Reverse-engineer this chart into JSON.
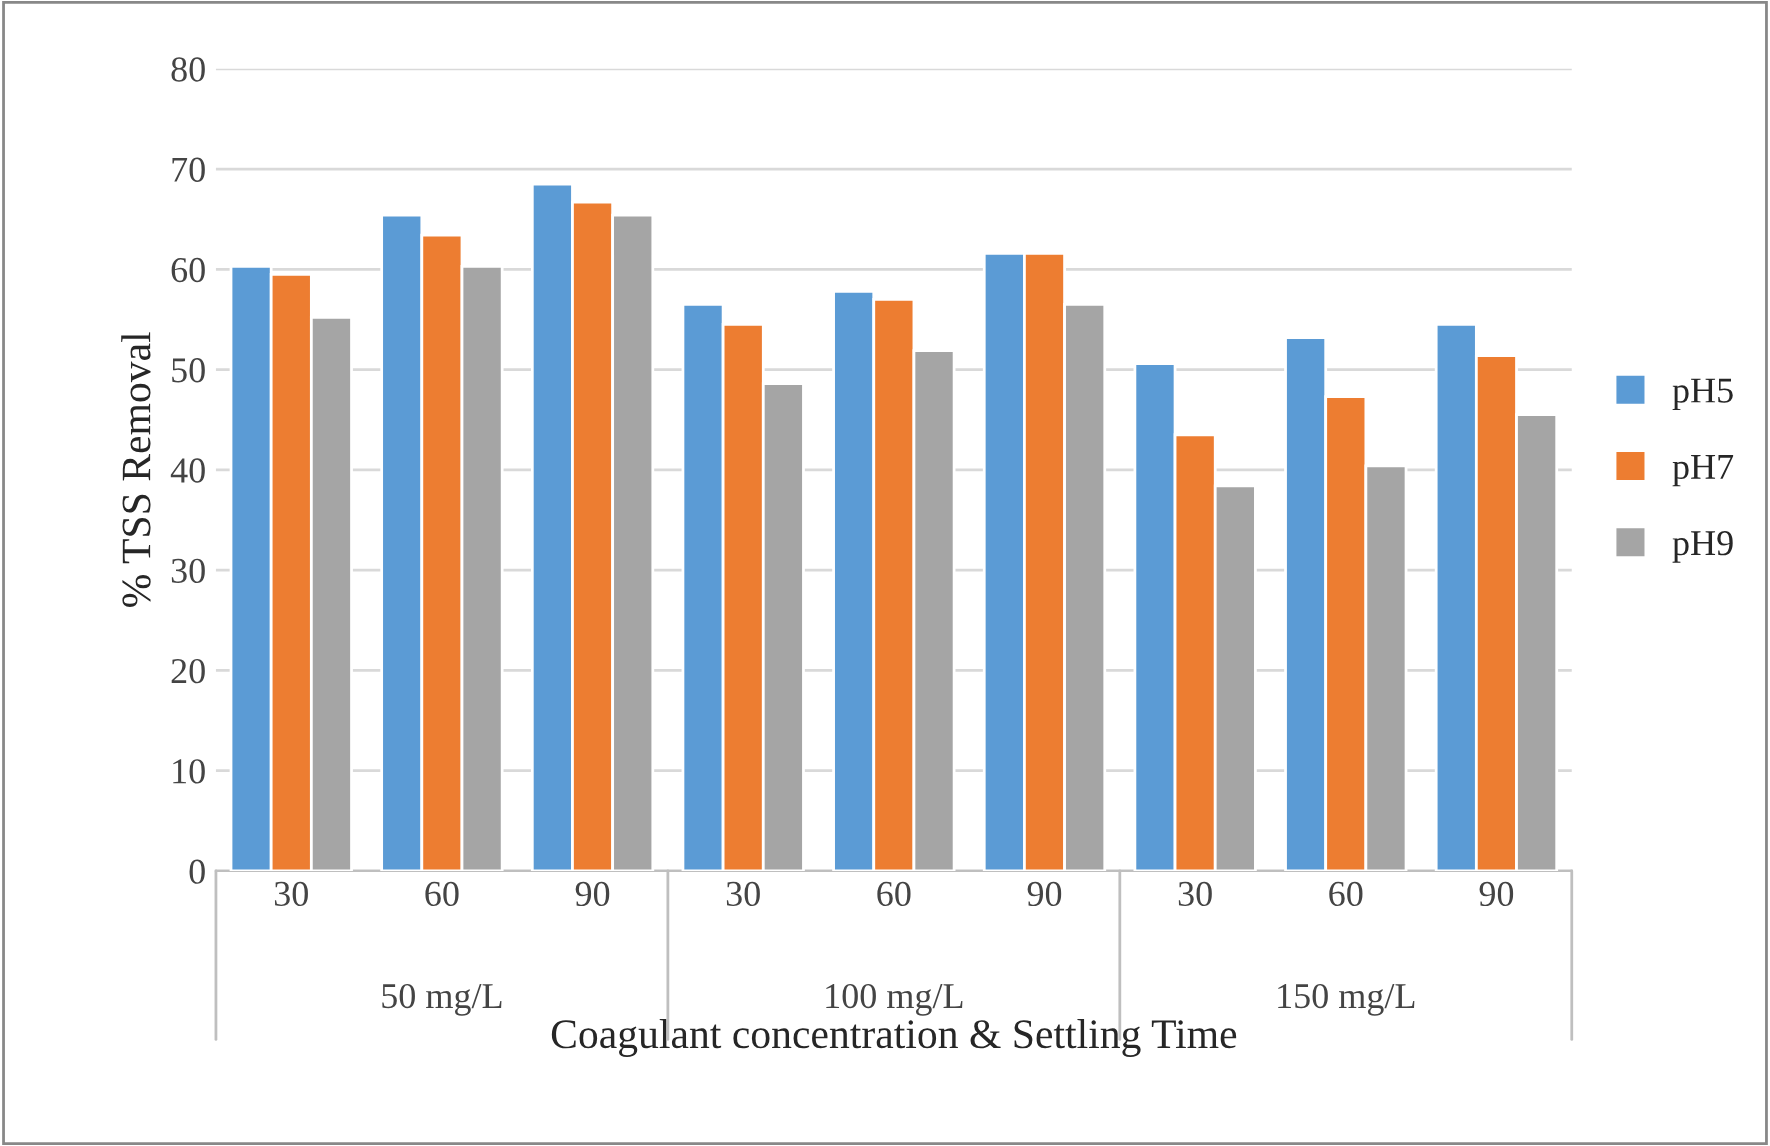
{
  "chart_data": {
    "type": "bar",
    "xlabel": "Coagulant concentration & Settling Time",
    "ylabel": "% TSS Removal",
    "categories": [
      "30",
      "60",
      "90",
      "30",
      "60",
      "90",
      "30",
      "60",
      "90"
    ],
    "annotations": [
      "50 mg/L",
      "100 mg/L",
      "150 mg/L"
    ],
    "series": [
      {
        "name": "pH5",
        "color": "#5b9bd5",
        "values": [
          60.3,
          65.4,
          68.5,
          56.5,
          57.8,
          61.6,
          50.6,
          53.2,
          54.5
        ]
      },
      {
        "name": "pH7",
        "color": "#ed7d31",
        "values": [
          59.5,
          63.4,
          66.7,
          54.5,
          57.0,
          61.6,
          43.5,
          47.3,
          51.4
        ]
      },
      {
        "name": "pH9",
        "color": "#a5a5a5",
        "values": [
          55.2,
          60.3,
          65.4,
          48.6,
          51.9,
          56.5,
          38.4,
          40.4,
          45.5
        ]
      }
    ],
    "ylim": [
      0,
      80
    ],
    "yticks": [
      0,
      10,
      20,
      30,
      40,
      50,
      60,
      70,
      80
    ],
    "grid": "y",
    "legend": "right"
  }
}
